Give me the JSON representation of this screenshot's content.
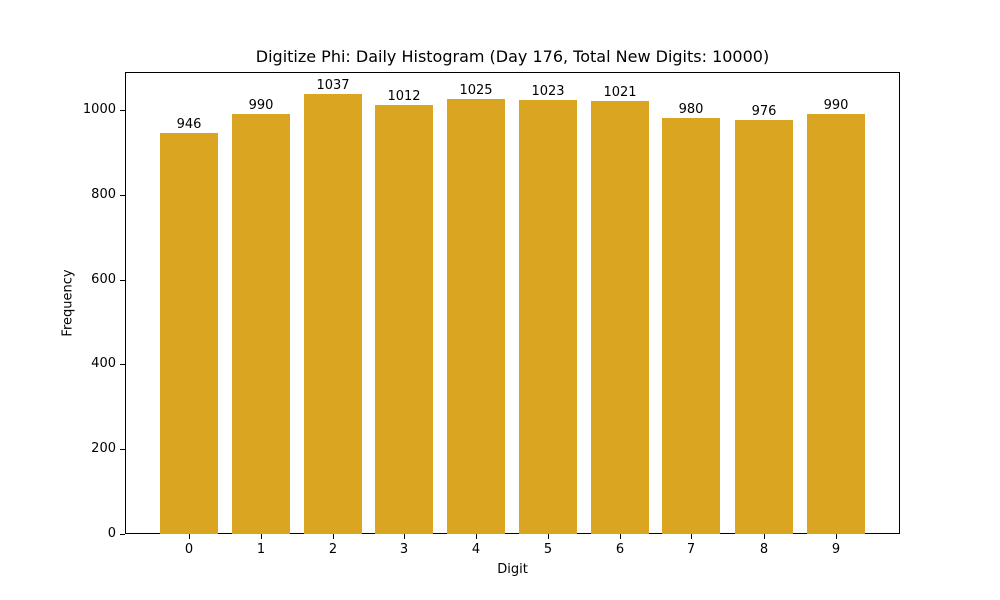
{
  "chart_data": {
    "type": "bar",
    "title": "Digitize Phi: Daily Histogram (Day 176, Total New Digits: 10000)",
    "xlabel": "Digit",
    "ylabel": "Frequency",
    "categories": [
      "0",
      "1",
      "2",
      "3",
      "4",
      "5",
      "6",
      "7",
      "8",
      "9"
    ],
    "values": [
      946,
      990,
      1037,
      1012,
      1025,
      1023,
      1021,
      980,
      976,
      990
    ],
    "yticks": [
      "0",
      "200",
      "400",
      "600",
      "800",
      "1000"
    ],
    "ylim": [
      0,
      1089
    ],
    "grid": false,
    "legend": null,
    "bar_color": "#DAA520",
    "data_labels": true
  }
}
